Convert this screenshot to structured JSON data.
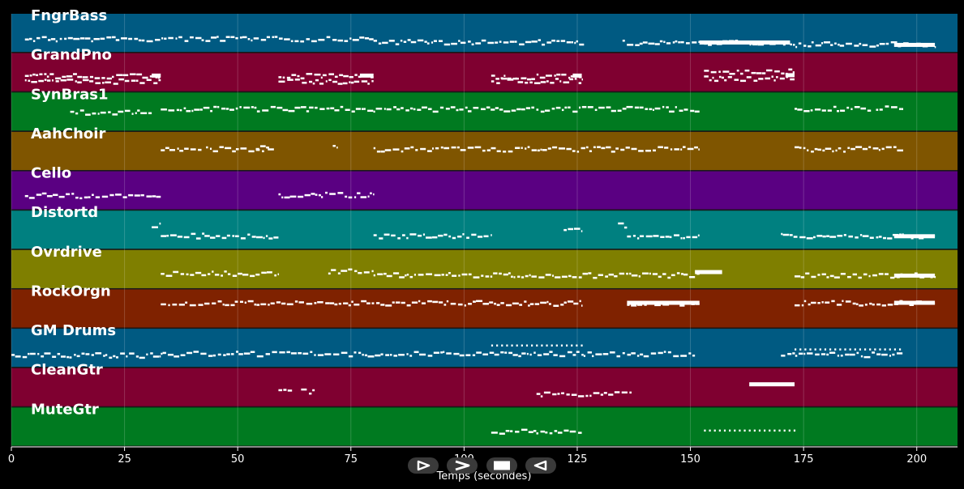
{
  "chart_data": {
    "type": "piano-roll",
    "xlabel": "Temps (secondes)",
    "xlim": [
      0,
      209
    ],
    "xticks": [
      0,
      25,
      50,
      75,
      100,
      125,
      150,
      175,
      200
    ],
    "grid": true,
    "tracks": [
      {
        "name": "FngrBass",
        "color": "#005a82",
        "segments": [
          {
            "start": 3,
            "end": 80,
            "level": 0.62
          },
          {
            "start": 80,
            "end": 126.5,
            "level": 0.7
          },
          {
            "start": 135,
            "end": 172,
            "level": 0.72
          },
          {
            "start": 172,
            "end": 204,
            "level": 0.76
          }
        ],
        "block_notes": [
          {
            "start": 152,
            "end": 172,
            "level": 0.72
          },
          {
            "start": 195,
            "end": 204,
            "level": 0.78
          }
        ]
      },
      {
        "name": "GrandPno",
        "color": "#7f0030",
        "segments": [
          {
            "start": 3,
            "end": 33,
            "level": 0.56
          },
          {
            "start": 3,
            "end": 33,
            "level": 0.7
          },
          {
            "start": 59,
            "end": 80,
            "level": 0.56
          },
          {
            "start": 59,
            "end": 80,
            "level": 0.7
          },
          {
            "start": 106,
            "end": 126,
            "level": 0.58
          },
          {
            "start": 106,
            "end": 126,
            "level": 0.68
          },
          {
            "start": 153,
            "end": 173,
            "level": 0.45
          },
          {
            "start": 153,
            "end": 173,
            "level": 0.62
          }
        ],
        "block_notes": [
          {
            "start": 31,
            "end": 33,
            "level": 0.56
          },
          {
            "start": 77,
            "end": 80,
            "level": 0.56
          },
          {
            "start": 124,
            "end": 126,
            "level": 0.56
          },
          {
            "start": 171,
            "end": 173,
            "level": 0.55
          }
        ]
      },
      {
        "name": "SynBras1",
        "color": "#007a20",
        "segments": [
          {
            "start": 13,
            "end": 31,
            "level": 0.48
          },
          {
            "start": 33,
            "end": 152,
            "level": 0.4
          },
          {
            "start": 173,
            "end": 190,
            "level": 0.4
          },
          {
            "start": 191,
            "end": 197,
            "level": 0.38
          }
        ],
        "block_notes": []
      },
      {
        "name": "AahChoir",
        "color": "#7f5500",
        "segments": [
          {
            "start": 33,
            "end": 42,
            "level": 0.42
          },
          {
            "start": 43,
            "end": 57,
            "level": 0.42
          },
          {
            "start": 54,
            "end": 58,
            "level": 0.38
          },
          {
            "start": 71,
            "end": 72,
            "level": 0.38
          },
          {
            "start": 80,
            "end": 152,
            "level": 0.42
          },
          {
            "start": 173,
            "end": 197,
            "level": 0.42
          }
        ],
        "block_notes": []
      },
      {
        "name": "Cello",
        "color": "#5a0082",
        "segments": [
          {
            "start": 3,
            "end": 33,
            "level": 0.6
          },
          {
            "start": 59,
            "end": 80,
            "level": 0.58
          }
        ],
        "block_notes": []
      },
      {
        "name": "Distortd",
        "color": "#008080",
        "segments": [
          {
            "start": 31,
            "end": 33,
            "level": 0.35
          },
          {
            "start": 33,
            "end": 59,
            "level": 0.62
          },
          {
            "start": 80,
            "end": 106,
            "level": 0.62
          },
          {
            "start": 122,
            "end": 126,
            "level": 0.48
          },
          {
            "start": 134,
            "end": 136,
            "level": 0.35
          },
          {
            "start": 136,
            "end": 152,
            "level": 0.62
          },
          {
            "start": 170,
            "end": 204,
            "level": 0.62
          }
        ],
        "block_notes": [
          {
            "start": 195,
            "end": 204,
            "level": 0.64
          }
        ]
      },
      {
        "name": "Ovrdrive",
        "color": "#7f7f00",
        "segments": [
          {
            "start": 33,
            "end": 59,
            "level": 0.58
          },
          {
            "start": 70,
            "end": 80,
            "level": 0.52
          },
          {
            "start": 80,
            "end": 152,
            "level": 0.62
          },
          {
            "start": 173,
            "end": 204,
            "level": 0.62
          }
        ],
        "block_notes": [
          {
            "start": 151,
            "end": 157,
            "level": 0.55
          },
          {
            "start": 195,
            "end": 204,
            "level": 0.64
          }
        ]
      },
      {
        "name": "RockOrgn",
        "color": "#7f2200",
        "segments": [
          {
            "start": 33,
            "end": 126,
            "level": 0.33
          },
          {
            "start": 136,
            "end": 152,
            "level": 0.33
          },
          {
            "start": 173,
            "end": 204,
            "level": 0.33
          }
        ],
        "block_notes": [
          {
            "start": 136,
            "end": 152,
            "level": 0.33
          },
          {
            "start": 195,
            "end": 204,
            "level": 0.33
          }
        ]
      },
      {
        "name": "GM Drums",
        "color": "#005a82",
        "segments": [
          {
            "start": 0,
            "end": 33,
            "level": 0.65
          },
          {
            "start": 33,
            "end": 151,
            "level": 0.62
          },
          {
            "start": 170,
            "end": 197,
            "level": 0.64
          }
        ],
        "block_notes": [],
        "dotted_lines": [
          {
            "start": 106,
            "end": 126,
            "level": 0.42
          },
          {
            "start": 173,
            "end": 197,
            "level": 0.52
          }
        ]
      },
      {
        "name": "CleanGtr",
        "color": "#7f0030",
        "segments": [
          {
            "start": 59,
            "end": 62,
            "level": 0.56
          },
          {
            "start": 64,
            "end": 67,
            "level": 0.56
          },
          {
            "start": 116,
            "end": 137,
            "level": 0.63
          }
        ],
        "block_notes": [
          {
            "start": 163,
            "end": 173,
            "level": 0.4
          }
        ]
      },
      {
        "name": "MuteGtr",
        "color": "#007a20",
        "segments": [
          {
            "start": 106,
            "end": 126,
            "level": 0.6
          }
        ],
        "block_notes": [],
        "dotted_lines": [
          {
            "start": 153,
            "end": 173,
            "level": 0.58
          }
        ]
      }
    ]
  },
  "transport": [
    {
      "name": "play-button",
      "icon": "play-icon"
    },
    {
      "name": "forward-button",
      "icon": "forward-icon"
    },
    {
      "name": "stop-button",
      "icon": "stop-icon"
    },
    {
      "name": "rewind-button",
      "icon": "rewind-icon"
    }
  ]
}
